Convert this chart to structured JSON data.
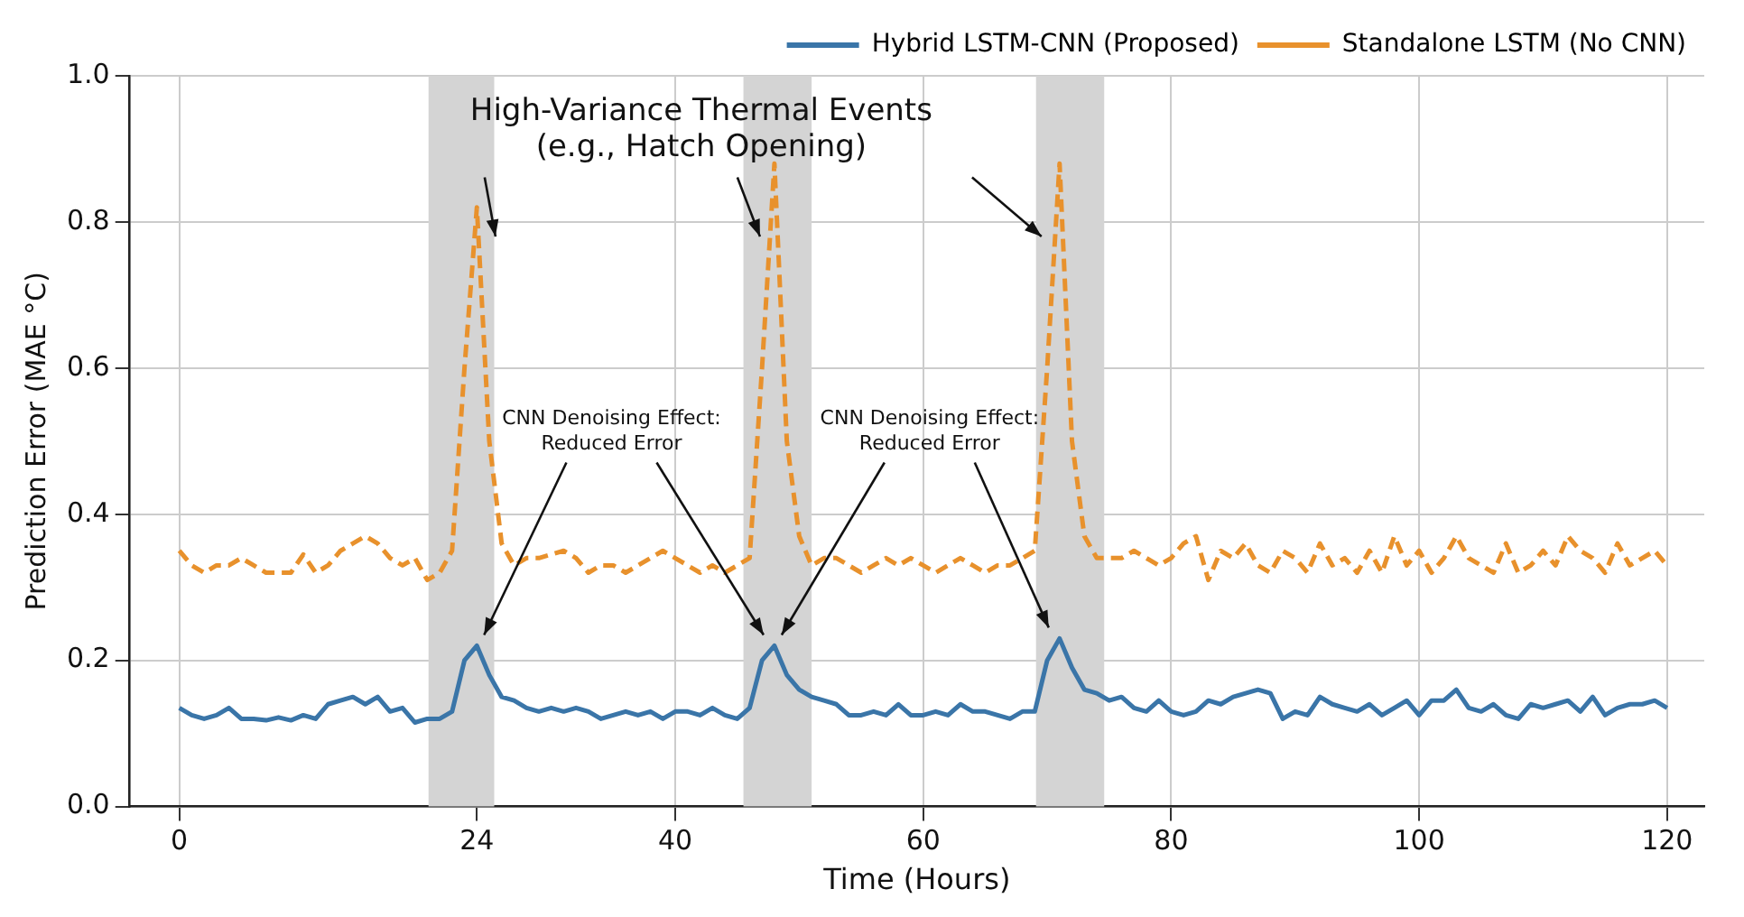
{
  "chart_data": {
    "type": "line",
    "xlabel": "Time (Hours)",
    "ylabel": "Prediction Error (MAE °C)",
    "x": [
      0,
      1,
      2,
      3,
      4,
      5,
      6,
      7,
      8,
      9,
      10,
      11,
      12,
      13,
      14,
      15,
      16,
      17,
      18,
      19,
      20,
      21,
      22,
      23,
      24,
      25,
      26,
      27,
      28,
      29,
      30,
      31,
      32,
      33,
      34,
      35,
      36,
      37,
      38,
      39,
      40,
      41,
      42,
      43,
      44,
      45,
      46,
      47,
      48,
      49,
      50,
      51,
      52,
      53,
      54,
      55,
      56,
      57,
      58,
      59,
      60,
      61,
      62,
      63,
      64,
      65,
      66,
      67,
      68,
      69,
      70,
      71,
      72,
      73,
      74,
      75,
      76,
      77,
      78,
      79,
      80,
      81,
      82,
      83,
      84,
      85,
      86,
      87,
      88,
      89,
      90,
      91,
      92,
      93,
      94,
      95,
      96,
      97,
      98,
      99,
      100,
      101,
      102,
      103,
      104,
      105,
      106,
      107,
      108,
      109,
      110,
      111,
      112,
      113,
      114,
      115,
      116,
      117,
      118,
      119,
      120
    ],
    "series": [
      {
        "name": "Hybrid LSTM-CNN (Proposed)",
        "color": "#3a75a8",
        "line_style": "solid",
        "values": [
          0.135,
          0.125,
          0.12,
          0.125,
          0.135,
          0.12,
          0.12,
          0.118,
          0.122,
          0.118,
          0.125,
          0.12,
          0.14,
          0.145,
          0.15,
          0.14,
          0.15,
          0.13,
          0.135,
          0.115,
          0.12,
          0.12,
          0.13,
          0.2,
          0.22,
          0.18,
          0.15,
          0.145,
          0.135,
          0.13,
          0.135,
          0.13,
          0.135,
          0.13,
          0.12,
          0.125,
          0.13,
          0.125,
          0.13,
          0.12,
          0.13,
          0.13,
          0.125,
          0.135,
          0.125,
          0.12,
          0.135,
          0.2,
          0.22,
          0.18,
          0.16,
          0.15,
          0.145,
          0.14,
          0.125,
          0.125,
          0.13,
          0.125,
          0.14,
          0.125,
          0.125,
          0.13,
          0.125,
          0.14,
          0.13,
          0.13,
          0.125,
          0.12,
          0.13,
          0.13,
          0.2,
          0.23,
          0.19,
          0.16,
          0.155,
          0.145,
          0.15,
          0.135,
          0.13,
          0.145,
          0.13,
          0.125,
          0.13,
          0.145,
          0.14,
          0.15,
          0.155,
          0.16,
          0.155,
          0.12,
          0.13,
          0.125,
          0.15,
          0.14,
          0.135,
          0.13,
          0.14,
          0.125,
          0.135,
          0.145,
          0.125,
          0.145,
          0.145,
          0.16,
          0.135,
          0.13,
          0.14,
          0.125,
          0.12,
          0.14,
          0.135,
          0.14,
          0.145,
          0.13,
          0.15,
          0.125,
          0.135,
          0.14,
          0.14,
          0.145,
          0.135
        ]
      },
      {
        "name": "Standalone LSTM (No CNN)",
        "color": "#e8912c",
        "line_style": "dashed",
        "values": [
          0.35,
          0.33,
          0.32,
          0.33,
          0.33,
          0.34,
          0.33,
          0.32,
          0.32,
          0.32,
          0.345,
          0.32,
          0.33,
          0.35,
          0.36,
          0.37,
          0.36,
          0.34,
          0.33,
          0.34,
          0.31,
          0.32,
          0.35,
          0.6,
          0.82,
          0.5,
          0.36,
          0.33,
          0.34,
          0.34,
          0.345,
          0.35,
          0.34,
          0.32,
          0.33,
          0.33,
          0.32,
          0.33,
          0.34,
          0.35,
          0.34,
          0.33,
          0.32,
          0.33,
          0.32,
          0.33,
          0.34,
          0.6,
          0.88,
          0.5,
          0.37,
          0.33,
          0.34,
          0.34,
          0.33,
          0.32,
          0.33,
          0.34,
          0.33,
          0.34,
          0.33,
          0.32,
          0.33,
          0.34,
          0.33,
          0.32,
          0.33,
          0.33,
          0.34,
          0.35,
          0.6,
          0.88,
          0.5,
          0.37,
          0.34,
          0.34,
          0.34,
          0.35,
          0.34,
          0.33,
          0.34,
          0.36,
          0.37,
          0.31,
          0.35,
          0.34,
          0.36,
          0.33,
          0.32,
          0.35,
          0.34,
          0.32,
          0.36,
          0.33,
          0.34,
          0.32,
          0.35,
          0.32,
          0.37,
          0.33,
          0.35,
          0.32,
          0.34,
          0.37,
          0.34,
          0.33,
          0.32,
          0.36,
          0.32,
          0.33,
          0.35,
          0.33,
          0.37,
          0.35,
          0.34,
          0.32,
          0.36,
          0.33,
          0.34,
          0.35,
          0.33
        ]
      }
    ],
    "xlim": [
      -4,
      123
    ],
    "xticks": [
      0,
      24,
      40,
      60,
      80,
      100,
      120
    ],
    "ylim": [
      0,
      1
    ],
    "yticks": [
      {
        "value": 0,
        "label": "0.0"
      },
      0.2,
      0.4,
      0.6,
      0.8,
      {
        "value": 1,
        "label": "1.0"
      }
    ],
    "bands": [
      {
        "axis": "x",
        "from": 20.1,
        "to": 25.4,
        "color": "#d4d4d4"
      },
      {
        "axis": "x",
        "from": 45.5,
        "to": 51,
        "color": "#d4d4d4"
      },
      {
        "axis": "x",
        "from": 69.1,
        "to": 74.6,
        "color": "#d4d4d4"
      }
    ],
    "annotations": [
      {
        "text": "High-Variance Thermal Events\n(e.g., Hatch Opening)",
        "x": 25.5,
        "y": 0.78
      },
      {
        "text": "CNN Denoising Effect:\nReduced Error",
        "x": 24,
        "y": 0.22
      },
      {
        "text": "CNN Denoising Effect:\nReduced Error",
        "x": 48,
        "y": 0.22
      }
    ],
    "grid": true,
    "legend": "top right",
    "marker": "none"
  }
}
